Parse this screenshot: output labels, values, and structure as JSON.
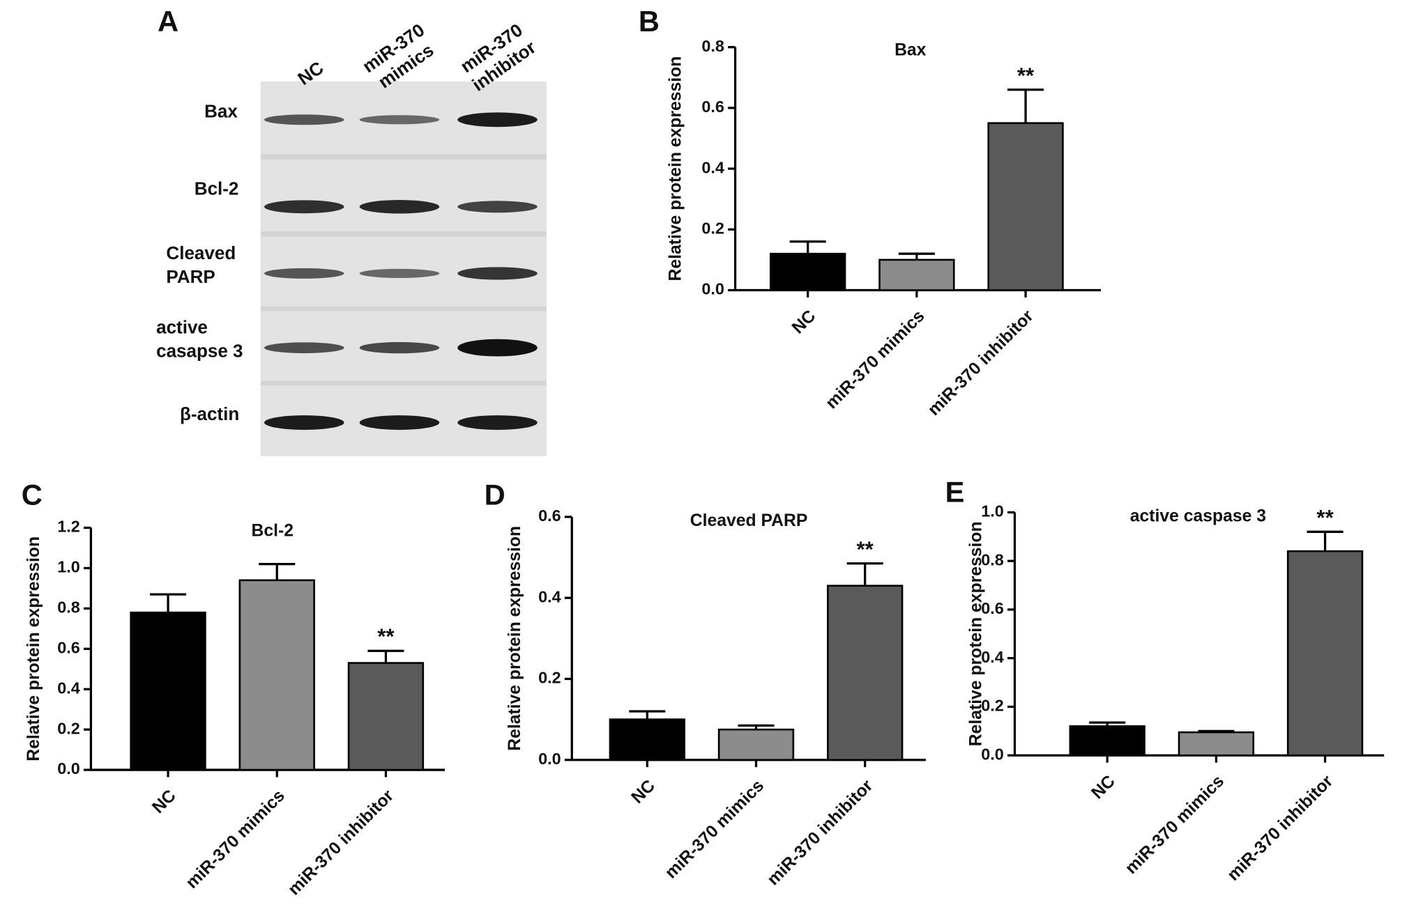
{
  "blot": {
    "panel_label": "A",
    "lanes": [
      [
        "NC"
      ],
      [
        "miR-370",
        "mimics"
      ],
      [
        "miR-370",
        "inhibitor"
      ]
    ],
    "rows": [
      [
        "Bax"
      ],
      [
        "Bcl-2"
      ],
      [
        "Cleaved",
        "PARP"
      ],
      [
        "active",
        "casapse 3"
      ],
      [
        "β-actin"
      ]
    ]
  },
  "chart_data": [
    {
      "type": "bar",
      "panel_label": "B",
      "title": "Bax",
      "y_label": "Relative protein expression",
      "categories": [
        "NC",
        "miR-370 mimics",
        "miR-370 inhibitor"
      ],
      "values": [
        0.12,
        0.1,
        0.55
      ],
      "errors": [
        0.04,
        0.02,
        0.11
      ],
      "colors": [
        "#000000",
        "#8c8c8c",
        "#5a5a5a"
      ],
      "significance": [
        null,
        null,
        "**"
      ],
      "ylim": [
        0,
        0.8
      ],
      "yticks": [
        {
          "value": 0,
          "label": "0.0"
        },
        0.2,
        0.4,
        0.6,
        0.8
      ]
    },
    {
      "type": "bar",
      "panel_label": "C",
      "title": "Bcl-2",
      "y_label": "Relative protein expression",
      "categories": [
        "NC",
        "miR-370 mimics",
        "miR-370 inhibitor"
      ],
      "values": [
        0.78,
        0.94,
        0.53
      ],
      "errors": [
        0.09,
        0.08,
        0.06
      ],
      "colors": [
        "#000000",
        "#8c8c8c",
        "#5a5a5a"
      ],
      "significance": [
        null,
        null,
        "**"
      ],
      "ylim": [
        0,
        1.2
      ],
      "yticks": [
        {
          "value": 0,
          "label": "0.0"
        },
        0.2,
        0.4,
        0.6,
        0.8,
        {
          "value": 1,
          "label": "1.0"
        },
        1.2
      ]
    },
    {
      "type": "bar",
      "panel_label": "D",
      "title": "Cleaved PARP",
      "y_label": "Relative protein expression",
      "categories": [
        "NC",
        "miR-370 mimics",
        "miR-370 inhibitor"
      ],
      "values": [
        0.1,
        0.075,
        0.43
      ],
      "errors": [
        0.02,
        0.01,
        0.055
      ],
      "colors": [
        "#000000",
        "#8c8c8c",
        "#5a5a5a"
      ],
      "significance": [
        null,
        null,
        "**"
      ],
      "ylim": [
        0,
        0.6
      ],
      "yticks": [
        {
          "value": 0,
          "label": "0.0"
        },
        0.2,
        0.4,
        0.6
      ]
    },
    {
      "type": "bar",
      "panel_label": "E",
      "title": "active caspase 3",
      "y_label": "Relative protein expression",
      "categories": [
        "NC",
        "miR-370 mimics",
        "miR-370 inhibitor"
      ],
      "values": [
        0.12,
        0.095,
        0.84
      ],
      "errors": [
        0.015,
        0.005,
        0.08
      ],
      "colors": [
        "#000000",
        "#8c8c8c",
        "#5a5a5a"
      ],
      "significance": [
        null,
        null,
        "**"
      ],
      "ylim": [
        0,
        1
      ],
      "yticks": [
        {
          "value": 0,
          "label": "0.0"
        },
        0.2,
        0.4,
        0.6,
        0.8,
        {
          "value": 1,
          "label": "1.0"
        }
      ]
    }
  ]
}
